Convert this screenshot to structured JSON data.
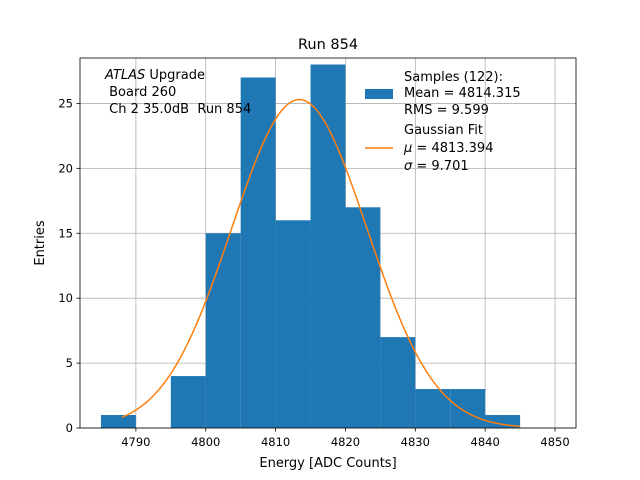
{
  "chart_data": {
    "type": "bar",
    "title": "Run 854",
    "xlabel": "Energy [ADC Counts]",
    "ylabel": "Entries",
    "xlim": [
      4782,
      4853
    ],
    "ylim": [
      0,
      28.5
    ],
    "xticks": [
      4790,
      4800,
      4810,
      4820,
      4830,
      4840,
      4850
    ],
    "yticks": [
      0,
      5,
      10,
      15,
      20,
      25
    ],
    "grid": true,
    "bar_color": "#1f77b4",
    "fit_color": "#ff7f0e",
    "bins": [
      {
        "x0": 4785,
        "x1": 4790,
        "count": 1
      },
      {
        "x0": 4790,
        "x1": 4795,
        "count": 0
      },
      {
        "x0": 4795,
        "x1": 4800,
        "count": 4
      },
      {
        "x0": 4800,
        "x1": 4805,
        "count": 15
      },
      {
        "x0": 4805,
        "x1": 4810,
        "count": 27
      },
      {
        "x0": 4810,
        "x1": 4815,
        "count": 16
      },
      {
        "x0": 4815,
        "x1": 4820,
        "count": 28
      },
      {
        "x0": 4820,
        "x1": 4825,
        "count": 17
      },
      {
        "x0": 4825,
        "x1": 4830,
        "count": 7
      },
      {
        "x0": 4830,
        "x1": 4835,
        "count": 3
      },
      {
        "x0": 4835,
        "x1": 4840,
        "count": 3
      },
      {
        "x0": 4840,
        "x1": 4845,
        "count": 1
      }
    ],
    "fit": {
      "mu": 4813.394,
      "sigma": 9.701,
      "amplitude": 25.3,
      "x_range": [
        4788,
        4845
      ]
    },
    "annotation": {
      "line1_italic": "ATLAS",
      "line1_rest": " Upgrade",
      "line2": " Board 260",
      "line3": " Ch 2 35.0dB  Run 854"
    },
    "legend": {
      "location": "upper-right",
      "samples": [
        "Samples (122):",
        "Mean = 4814.315",
        "RMS = 9.599"
      ],
      "fit_title": "Gaussian Fit",
      "fit_mu_symbol": "μ",
      "fit_mu_value": " = 4813.394",
      "fit_sigma_symbol": "σ",
      "fit_sigma_value": " = 9.701"
    }
  }
}
